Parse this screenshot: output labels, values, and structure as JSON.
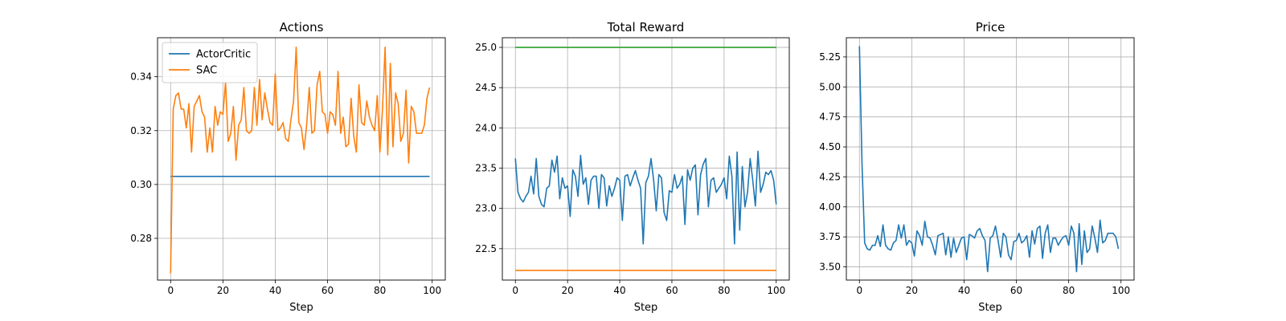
{
  "chart_data": [
    {
      "type": "line",
      "title": "Actions",
      "xlabel": "Step",
      "ylabel": "",
      "xlim": [
        -5,
        105
      ],
      "ylim": [
        0.2645,
        0.3545
      ],
      "xticks": [
        0,
        20,
        40,
        60,
        80,
        100
      ],
      "yticks": [
        0.28,
        0.3,
        0.32,
        0.34
      ],
      "grid": true,
      "legend": "upper left",
      "series": [
        {
          "name": "ActorCritic",
          "color": "#1f77b4",
          "x": [
            0,
            99
          ],
          "y": [
            0.303,
            0.303
          ]
        },
        {
          "name": "SAC",
          "color": "#ff7f0e",
          "x": [
            0,
            1,
            2,
            3,
            4,
            5,
            6,
            7,
            8,
            9,
            10,
            11,
            12,
            13,
            14,
            15,
            16,
            17,
            18,
            19,
            20,
            21,
            22,
            23,
            24,
            25,
            26,
            27,
            28,
            29,
            30,
            31,
            32,
            33,
            34,
            35,
            36,
            37,
            38,
            39,
            40,
            41,
            42,
            43,
            44,
            45,
            46,
            47,
            48,
            49,
            50,
            51,
            52,
            53,
            54,
            55,
            56,
            57,
            58,
            59,
            60,
            61,
            62,
            63,
            64,
            65,
            66,
            67,
            68,
            69,
            70,
            71,
            72,
            73,
            74,
            75,
            76,
            77,
            78,
            79,
            80,
            81,
            82,
            83,
            84,
            85,
            86,
            87,
            88,
            89,
            90,
            91,
            92,
            93,
            94,
            95,
            96,
            97,
            98,
            99
          ],
          "y": [
            0.267,
            0.328,
            0.333,
            0.334,
            0.328,
            0.328,
            0.321,
            0.33,
            0.312,
            0.329,
            0.331,
            0.333,
            0.327,
            0.325,
            0.312,
            0.321,
            0.312,
            0.329,
            0.322,
            0.327,
            0.326,
            0.338,
            0.316,
            0.319,
            0.329,
            0.309,
            0.322,
            0.324,
            0.336,
            0.32,
            0.319,
            0.32,
            0.336,
            0.322,
            0.339,
            0.324,
            0.334,
            0.328,
            0.323,
            0.322,
            0.341,
            0.32,
            0.321,
            0.323,
            0.317,
            0.316,
            0.324,
            0.331,
            0.351,
            0.323,
            0.321,
            0.313,
            0.322,
            0.336,
            0.319,
            0.32,
            0.337,
            0.342,
            0.327,
            0.326,
            0.319,
            0.327,
            0.326,
            0.322,
            0.342,
            0.319,
            0.325,
            0.314,
            0.315,
            0.332,
            0.318,
            0.312,
            0.337,
            0.323,
            0.322,
            0.331,
            0.325,
            0.322,
            0.32,
            0.333,
            0.312,
            0.328,
            0.351,
            0.311,
            0.345,
            0.314,
            0.334,
            0.33,
            0.316,
            0.319,
            0.335,
            0.308,
            0.329,
            0.327,
            0.319,
            0.319,
            0.319,
            0.322,
            0.332,
            0.336
          ]
        }
      ]
    },
    {
      "type": "line",
      "title": "Total Reward",
      "xlabel": "Step",
      "ylabel": "",
      "xlim": [
        -5,
        105
      ],
      "ylim": [
        22.11,
        25.12
      ],
      "xticks": [
        0,
        20,
        40,
        60,
        80,
        100
      ],
      "yticks": [
        22.5,
        23.0,
        23.5,
        24.0,
        24.5,
        25.0
      ],
      "grid": true,
      "series": [
        {
          "color": "#2ca02c",
          "x": [
            0,
            100
          ],
          "y": [
            25.0,
            25.0
          ]
        },
        {
          "color": "#ff7f0e",
          "x": [
            0,
            100
          ],
          "y": [
            22.23,
            22.23
          ]
        },
        {
          "color": "#1f77b4",
          "x": [
            0,
            1,
            2,
            3,
            4,
            5,
            6,
            7,
            8,
            9,
            10,
            11,
            12,
            13,
            14,
            15,
            16,
            17,
            18,
            19,
            20,
            21,
            22,
            23,
            24,
            25,
            26,
            27,
            28,
            29,
            30,
            31,
            32,
            33,
            34,
            35,
            36,
            37,
            38,
            39,
            40,
            41,
            42,
            43,
            44,
            45,
            46,
            47,
            48,
            49,
            50,
            51,
            52,
            53,
            54,
            55,
            56,
            57,
            58,
            59,
            60,
            61,
            62,
            63,
            64,
            65,
            66,
            67,
            68,
            69,
            70,
            71,
            72,
            73,
            74,
            75,
            76,
            77,
            78,
            79,
            80,
            81,
            82,
            83,
            84,
            85,
            86,
            87,
            88,
            89,
            90,
            91,
            92,
            93,
            94,
            95,
            96,
            97,
            98,
            99,
            100
          ],
          "y": [
            23.62,
            23.2,
            23.12,
            23.08,
            23.15,
            23.2,
            23.4,
            23.18,
            23.62,
            23.15,
            23.05,
            23.02,
            23.25,
            23.28,
            23.6,
            23.45,
            23.65,
            23.12,
            23.38,
            23.25,
            23.28,
            22.9,
            23.48,
            23.4,
            23.15,
            23.66,
            23.3,
            23.38,
            23.05,
            23.35,
            23.4,
            23.4,
            23.0,
            23.42,
            23.38,
            23.03,
            23.28,
            23.15,
            23.25,
            23.38,
            23.35,
            22.85,
            23.4,
            23.42,
            23.28,
            23.38,
            23.47,
            23.35,
            23.25,
            22.56,
            23.32,
            23.4,
            23.62,
            23.35,
            22.97,
            23.42,
            23.38,
            22.95,
            22.85,
            23.22,
            23.2,
            23.42,
            23.25,
            23.3,
            23.4,
            22.8,
            23.48,
            23.35,
            23.5,
            23.54,
            22.92,
            23.42,
            23.55,
            23.62,
            23.02,
            23.35,
            23.38,
            23.2,
            23.25,
            23.3,
            23.38,
            23.12,
            23.65,
            23.4,
            22.56,
            23.7,
            22.73,
            23.52,
            23.02,
            23.2,
            23.62,
            23.35,
            23.03,
            23.71,
            23.2,
            23.3,
            23.45,
            23.42,
            23.47,
            23.35,
            23.05
          ]
        }
      ]
    },
    {
      "type": "line",
      "title": "Price",
      "xlabel": "Step",
      "ylabel": "",
      "xlim": [
        -5,
        105
      ],
      "ylim": [
        3.39,
        5.41
      ],
      "xticks": [
        0,
        20,
        40,
        60,
        80,
        100
      ],
      "yticks": [
        3.5,
        3.75,
        4.0,
        4.25,
        4.5,
        4.75,
        5.0,
        5.25
      ],
      "yticklabels": [
        "3.50",
        "3.75",
        "4.00",
        "4.25",
        "4.50",
        "4.75",
        "5.00",
        "5.25"
      ],
      "grid": true,
      "series": [
        {
          "color": "#1f77b4",
          "x": [
            0,
            1,
            2,
            3,
            4,
            5,
            6,
            7,
            8,
            9,
            10,
            11,
            12,
            13,
            14,
            15,
            16,
            17,
            18,
            19,
            20,
            21,
            22,
            23,
            24,
            25,
            26,
            27,
            28,
            29,
            30,
            31,
            32,
            33,
            34,
            35,
            36,
            37,
            38,
            39,
            40,
            41,
            42,
            43,
            44,
            45,
            46,
            47,
            48,
            49,
            50,
            51,
            52,
            53,
            54,
            55,
            56,
            57,
            58,
            59,
            60,
            61,
            62,
            63,
            64,
            65,
            66,
            67,
            68,
            69,
            70,
            71,
            72,
            73,
            74,
            75,
            76,
            77,
            78,
            79,
            80,
            81,
            82,
            83,
            84,
            85,
            86,
            87,
            88,
            89,
            90,
            91,
            92,
            93,
            94,
            95,
            96,
            97,
            98,
            99
          ],
          "y": [
            5.34,
            4.35,
            3.7,
            3.65,
            3.64,
            3.68,
            3.68,
            3.76,
            3.67,
            3.85,
            3.68,
            3.65,
            3.64,
            3.7,
            3.72,
            3.85,
            3.74,
            3.85,
            3.68,
            3.72,
            3.7,
            3.59,
            3.8,
            3.76,
            3.68,
            3.88,
            3.75,
            3.74,
            3.68,
            3.6,
            3.76,
            3.77,
            3.78,
            3.6,
            3.75,
            3.58,
            3.74,
            3.62,
            3.68,
            3.74,
            3.75,
            3.56,
            3.77,
            3.76,
            3.74,
            3.8,
            3.82,
            3.76,
            3.72,
            3.46,
            3.74,
            3.76,
            3.84,
            3.72,
            3.58,
            3.78,
            3.75,
            3.6,
            3.56,
            3.71,
            3.72,
            3.78,
            3.7,
            3.72,
            3.76,
            3.58,
            3.8,
            3.69,
            3.82,
            3.84,
            3.57,
            3.78,
            3.85,
            3.62,
            3.74,
            3.74,
            3.68,
            3.72,
            3.75,
            3.76,
            3.68,
            3.84,
            3.78,
            3.46,
            3.86,
            3.52,
            3.8,
            3.62,
            3.65,
            3.84,
            3.74,
            3.62,
            3.89,
            3.7,
            3.72,
            3.78,
            3.78,
            3.78,
            3.75,
            3.65
          ]
        }
      ]
    }
  ]
}
